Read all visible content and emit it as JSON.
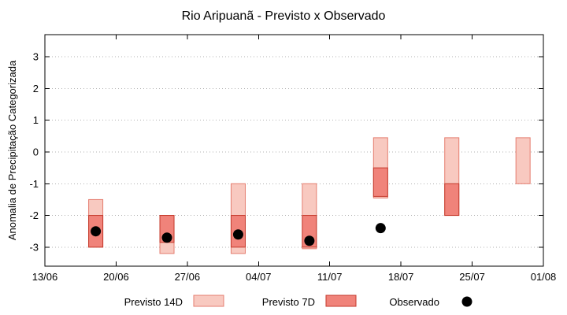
{
  "chart_data": {
    "type": "bar",
    "subtype": "floating-range-bars-with-points",
    "title": "Rio Aripuanã - Previsto x Observado",
    "xlabel": "",
    "ylabel": "Anomalia de Precipitação Categorizada",
    "ylim": [
      -3.6,
      3.7
    ],
    "yticks": [
      -3,
      -2,
      -1,
      0,
      1,
      2,
      3
    ],
    "x_axis_days": [
      0,
      49
    ],
    "xticks": [
      {
        "day": 0,
        "label": "13/06"
      },
      {
        "day": 7,
        "label": "20/06"
      },
      {
        "day": 14,
        "label": "27/06"
      },
      {
        "day": 21,
        "label": "04/07"
      },
      {
        "day": 28,
        "label": "11/07"
      },
      {
        "day": 35,
        "label": "18/07"
      },
      {
        "day": 42,
        "label": "25/07"
      },
      {
        "day": 49,
        "label": "01/08"
      }
    ],
    "grid": "horizontal-dotted",
    "legend_position": "bottom",
    "series": [
      {
        "name": "Previsto 14D",
        "type": "range",
        "color_fill": "#f8c9c0",
        "color_stroke": "#e57d6f",
        "ranges": [
          {
            "day": 5,
            "low": -3.0,
            "high": -1.5
          },
          {
            "day": 12,
            "low": -3.2,
            "high": -2.0
          },
          {
            "day": 19,
            "low": -3.2,
            "high": -1.0
          },
          {
            "day": 26,
            "low": -3.05,
            "high": -1.0
          },
          {
            "day": 33,
            "low": -1.45,
            "high": 0.45
          },
          {
            "day": 40,
            "low": -2.0,
            "high": 0.45
          },
          {
            "day": 47,
            "low": -1.0,
            "high": 0.45
          }
        ]
      },
      {
        "name": "Previsto 7D",
        "type": "range",
        "color_fill": "#f0837a",
        "color_stroke": "#c43a2c",
        "ranges": [
          {
            "day": 5,
            "low": -3.0,
            "high": -2.0
          },
          {
            "day": 12,
            "low": -2.85,
            "high": -2.0
          },
          {
            "day": 19,
            "low": -3.0,
            "high": -2.0
          },
          {
            "day": 26,
            "low": -3.0,
            "high": -2.0
          },
          {
            "day": 33,
            "low": -1.4,
            "high": -0.5
          },
          {
            "day": 40,
            "low": -2.0,
            "high": -1.0
          }
        ]
      },
      {
        "name": "Observado",
        "type": "points",
        "color": "#000000",
        "points": [
          {
            "day": 5,
            "value": -2.5
          },
          {
            "day": 12,
            "value": -2.7
          },
          {
            "day": 19,
            "value": -2.6
          },
          {
            "day": 26,
            "value": -2.8
          },
          {
            "day": 33,
            "value": -2.4
          }
        ]
      }
    ]
  }
}
